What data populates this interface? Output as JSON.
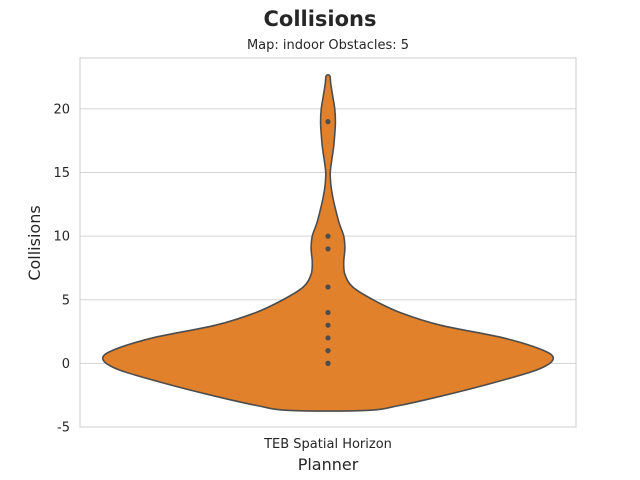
{
  "chart_data": {
    "type": "violin",
    "title": "Collisions",
    "subtitle": "Map: indoor Obstacles: 5",
    "xlabel": "Planner",
    "ylabel": "Collisions",
    "categories": [
      "TEB Spatial Horizon"
    ],
    "ylim": [
      -5,
      24
    ],
    "yticks": [
      -5,
      0,
      5,
      10,
      15,
      20
    ],
    "grid": true,
    "violin_color": "#e1812c",
    "edge_color": "#4d4d4d",
    "density_profile": [
      {
        "y": -3.7,
        "w": 0.17
      },
      {
        "y": -3.3,
        "w": 0.32
      },
      {
        "y": -2.5,
        "w": 0.52
      },
      {
        "y": -1.5,
        "w": 0.74
      },
      {
        "y": -0.5,
        "w": 0.93
      },
      {
        "y": 0.3,
        "w": 1.0
      },
      {
        "y": 1.0,
        "w": 0.96
      },
      {
        "y": 2.0,
        "w": 0.78
      },
      {
        "y": 3.0,
        "w": 0.5
      },
      {
        "y": 4.0,
        "w": 0.32
      },
      {
        "y": 5.0,
        "w": 0.2
      },
      {
        "y": 6.0,
        "w": 0.11
      },
      {
        "y": 7.0,
        "w": 0.075
      },
      {
        "y": 8.0,
        "w": 0.07
      },
      {
        "y": 9.0,
        "w": 0.075
      },
      {
        "y": 10.0,
        "w": 0.07
      },
      {
        "y": 11.0,
        "w": 0.05
      },
      {
        "y": 12.0,
        "w": 0.035
      },
      {
        "y": 13.0,
        "w": 0.022
      },
      {
        "y": 14.0,
        "w": 0.013
      },
      {
        "y": 15.0,
        "w": 0.01
      },
      {
        "y": 16.0,
        "w": 0.017
      },
      {
        "y": 17.0,
        "w": 0.025
      },
      {
        "y": 18.0,
        "w": 0.03
      },
      {
        "y": 19.0,
        "w": 0.033
      },
      {
        "y": 20.0,
        "w": 0.03
      },
      {
        "y": 21.0,
        "w": 0.021
      },
      {
        "y": 22.0,
        "w": 0.012
      },
      {
        "y": 22.6,
        "w": 0.008
      }
    ],
    "points": [
      0,
      0,
      0,
      1,
      2,
      3,
      4,
      6,
      9,
      10,
      19
    ]
  }
}
